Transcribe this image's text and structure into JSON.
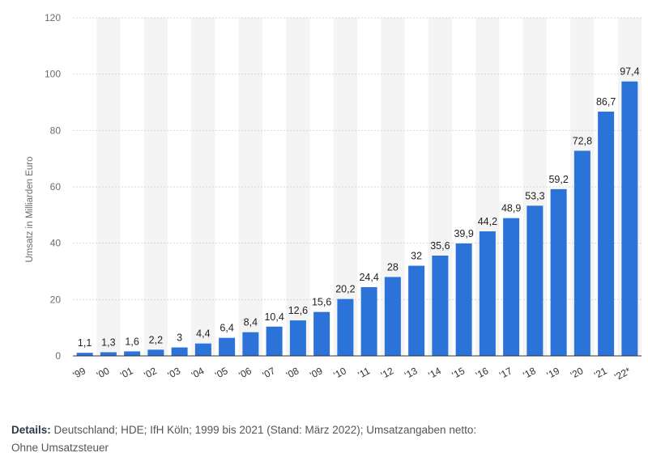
{
  "chart_data": {
    "type": "bar",
    "categories": [
      "'99",
      "'00",
      "'01",
      "'02",
      "'03",
      "'04",
      "'05",
      "'06",
      "'07",
      "'08",
      "'09",
      "'10",
      "'11",
      "'12",
      "'13",
      "'14",
      "'15",
      "'16",
      "'17",
      "'18",
      "'19",
      "'20",
      "'21",
      "'22*"
    ],
    "values": [
      1.1,
      1.3,
      1.6,
      2.2,
      3,
      4.4,
      6.4,
      8.4,
      10.4,
      12.6,
      15.6,
      20.2,
      24.4,
      28,
      32,
      35.6,
      39.9,
      44.2,
      48.9,
      53.3,
      59.2,
      72.8,
      86.7,
      97.4
    ],
    "value_labels": [
      "1,1",
      "1,3",
      "1,6",
      "2,2",
      "3",
      "4,4",
      "6,4",
      "8,4",
      "10,4",
      "12,6",
      "15,6",
      "20,2",
      "24,4",
      "28",
      "32",
      "35,6",
      "39,9",
      "44,2",
      "48,9",
      "53,3",
      "59,2",
      "72,8",
      "86,7",
      "97,4"
    ],
    "title": "",
    "xlabel": "",
    "ylabel": "Umsatz in Milliarden Euro",
    "ylim": [
      0,
      120
    ],
    "yticks": [
      0,
      20,
      40,
      60,
      80,
      100,
      120
    ],
    "grid": true,
    "bar_color": "#2b73d9"
  },
  "details": {
    "label": "Details:",
    "text": "Deutschland; HDE; IfH Köln; 1999 bis 2021 (Stand: März 2022); Umsatzangaben netto: Ohne Umsatzsteuer"
  }
}
